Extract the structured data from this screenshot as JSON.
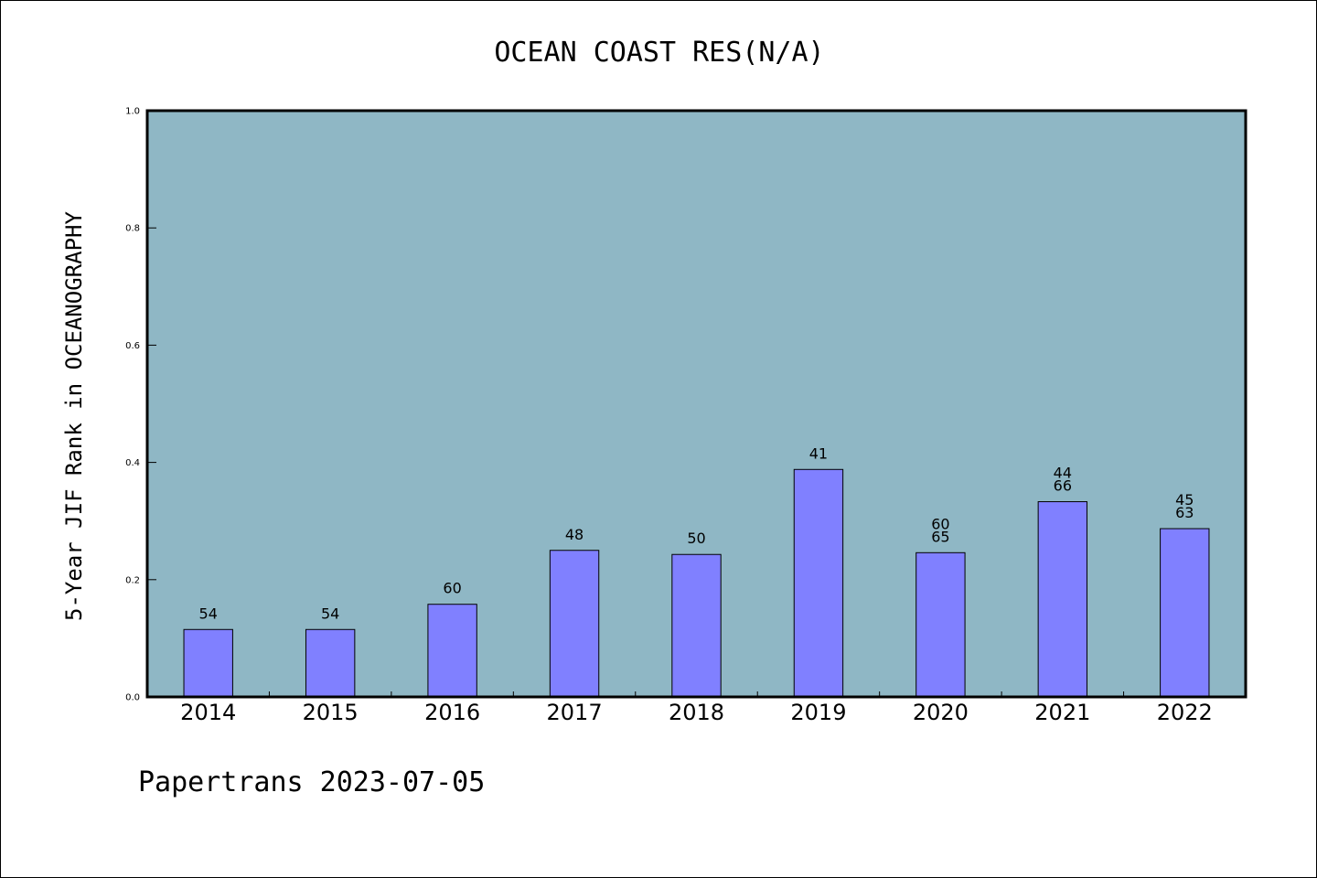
{
  "footer": {
    "text": "Papertrans 2023-07-05"
  },
  "colors": {
    "plot_background": "#8fb7c5",
    "bar_fill": "#8080ff",
    "bar_stroke": "#000000",
    "axis": "#000000"
  },
  "chart_data": {
    "type": "bar",
    "title": "OCEAN COAST RES(N/A)",
    "xlabel": "",
    "ylabel": "5-Year JIF Rank in OCEANOGRAPHY",
    "categories": [
      "2014",
      "2015",
      "2016",
      "2017",
      "2018",
      "2019",
      "2020",
      "2021",
      "2022"
    ],
    "values": [
      0.115,
      0.115,
      0.158,
      0.25,
      0.243,
      0.388,
      0.246,
      0.333,
      0.287
    ],
    "bar_labels": [
      [
        "54"
      ],
      [
        "54"
      ],
      [
        "60"
      ],
      [
        "48"
      ],
      [
        "50"
      ],
      [
        "41"
      ],
      [
        "60",
        "65"
      ],
      [
        "44",
        "66"
      ],
      [
        "45",
        "63"
      ]
    ],
    "ylim": [
      0,
      1
    ],
    "yticks": [
      "0.0",
      "0.2",
      "0.4",
      "0.6",
      "0.8",
      "1.0"
    ],
    "grid": false,
    "legend": "none"
  }
}
